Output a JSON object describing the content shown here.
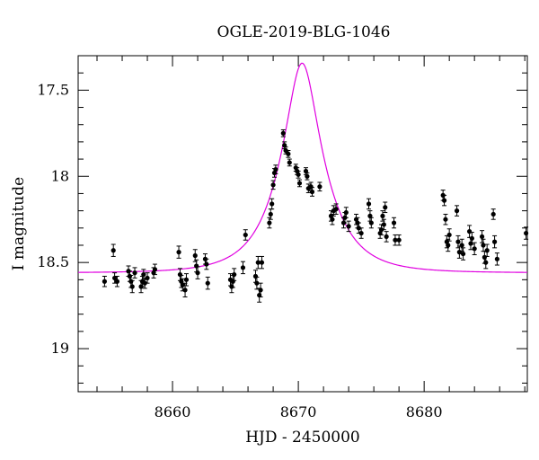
{
  "chart_data": {
    "type": "scatter",
    "title": "OGLE-2019-BLG-1046",
    "xlabel": "HJD - 2450000",
    "ylabel": "I magnitude",
    "xlim": [
      8652.5,
      8688.2
    ],
    "ylim": [
      17.3,
      19.25
    ],
    "y_inverted": true,
    "x_major_ticks": [
      8660,
      8670,
      8680
    ],
    "x_minor_step": 2,
    "y_major_ticks": [
      17.5,
      18,
      18.5,
      19
    ],
    "y_minor_step": 0.1,
    "series": [
      {
        "type": "scatter_errorbars",
        "color": "#000000",
        "points": [
          [
            8654.6,
            18.61,
            0.03
          ],
          [
            8655.3,
            18.43,
            0.035
          ],
          [
            8655.4,
            18.59,
            0.03
          ],
          [
            8655.6,
            18.61,
            0.03
          ],
          [
            8656.5,
            18.55,
            0.03
          ],
          [
            8656.6,
            18.58,
            0.03
          ],
          [
            8656.7,
            18.61,
            0.035
          ],
          [
            8656.8,
            18.64,
            0.035
          ],
          [
            8657.0,
            18.56,
            0.03
          ],
          [
            8657.5,
            18.64,
            0.035
          ],
          [
            8657.6,
            18.61,
            0.03
          ],
          [
            8657.7,
            18.57,
            0.03
          ],
          [
            8657.8,
            18.62,
            0.03
          ],
          [
            8658.0,
            18.59,
            0.03
          ],
          [
            8658.5,
            18.56,
            0.03
          ],
          [
            8658.6,
            18.54,
            0.03
          ],
          [
            8660.5,
            18.44,
            0.035
          ],
          [
            8660.6,
            18.57,
            0.035
          ],
          [
            8660.7,
            18.61,
            0.035
          ],
          [
            8660.8,
            18.63,
            0.035
          ],
          [
            8661.0,
            18.66,
            0.04
          ],
          [
            8661.1,
            18.6,
            0.035
          ],
          [
            8661.8,
            18.46,
            0.035
          ],
          [
            8661.9,
            18.52,
            0.035
          ],
          [
            8662.0,
            18.56,
            0.035
          ],
          [
            8662.6,
            18.48,
            0.03
          ],
          [
            8662.7,
            18.51,
            0.03
          ],
          [
            8662.8,
            18.62,
            0.035
          ],
          [
            8664.6,
            18.6,
            0.035
          ],
          [
            8664.7,
            18.64,
            0.035
          ],
          [
            8664.8,
            18.61,
            0.035
          ],
          [
            8664.9,
            18.57,
            0.035
          ],
          [
            8665.6,
            18.53,
            0.035
          ],
          [
            8665.8,
            18.34,
            0.03
          ],
          [
            8666.6,
            18.58,
            0.035
          ],
          [
            8666.7,
            18.62,
            0.035
          ],
          [
            8666.8,
            18.5,
            0.035
          ],
          [
            8666.9,
            18.69,
            0.04
          ],
          [
            8667.0,
            18.66,
            0.04
          ],
          [
            8667.1,
            18.5,
            0.035
          ],
          [
            8667.7,
            18.27,
            0.03
          ],
          [
            8667.8,
            18.22,
            0.03
          ],
          [
            8667.9,
            18.16,
            0.03
          ],
          [
            8668.0,
            18.05,
            0.025
          ],
          [
            8668.1,
            17.98,
            0.025
          ],
          [
            8668.2,
            17.96,
            0.025
          ],
          [
            8668.8,
            17.75,
            0.02
          ],
          [
            8668.9,
            17.82,
            0.02
          ],
          [
            8669.0,
            17.85,
            0.02
          ],
          [
            8669.2,
            17.87,
            0.02
          ],
          [
            8669.3,
            17.92,
            0.02
          ],
          [
            8669.8,
            17.95,
            0.02
          ],
          [
            8669.9,
            17.97,
            0.02
          ],
          [
            8670.0,
            17.99,
            0.02
          ],
          [
            8670.1,
            18.04,
            0.02
          ],
          [
            8670.6,
            17.97,
            0.02
          ],
          [
            8670.7,
            18.0,
            0.02
          ],
          [
            8670.8,
            18.07,
            0.025
          ],
          [
            8671.0,
            18.06,
            0.025
          ],
          [
            8671.1,
            18.09,
            0.025
          ],
          [
            8671.7,
            18.06,
            0.025
          ],
          [
            8672.6,
            18.23,
            0.03
          ],
          [
            8672.7,
            18.25,
            0.03
          ],
          [
            8672.8,
            18.2,
            0.03
          ],
          [
            8673.0,
            18.19,
            0.03
          ],
          [
            8673.6,
            18.27,
            0.03
          ],
          [
            8673.7,
            18.24,
            0.03
          ],
          [
            8673.8,
            18.21,
            0.03
          ],
          [
            8674.0,
            18.29,
            0.03
          ],
          [
            8674.6,
            18.25,
            0.03
          ],
          [
            8674.7,
            18.27,
            0.03
          ],
          [
            8674.8,
            18.3,
            0.03
          ],
          [
            8675.0,
            18.33,
            0.03
          ],
          [
            8675.6,
            18.16,
            0.03
          ],
          [
            8675.7,
            18.23,
            0.03
          ],
          [
            8675.8,
            18.27,
            0.03
          ],
          [
            8676.5,
            18.33,
            0.03
          ],
          [
            8676.6,
            18.31,
            0.03
          ],
          [
            8676.7,
            18.23,
            0.03
          ],
          [
            8676.8,
            18.28,
            0.03
          ],
          [
            8676.9,
            18.18,
            0.03
          ],
          [
            8677.0,
            18.35,
            0.03
          ],
          [
            8677.6,
            18.27,
            0.03
          ],
          [
            8677.7,
            18.37,
            0.03
          ],
          [
            8678.0,
            18.37,
            0.03
          ],
          [
            8681.5,
            18.11,
            0.03
          ],
          [
            8681.6,
            18.14,
            0.03
          ],
          [
            8681.7,
            18.25,
            0.03
          ],
          [
            8681.8,
            18.38,
            0.035
          ],
          [
            8681.9,
            18.4,
            0.035
          ],
          [
            8682.0,
            18.34,
            0.035
          ],
          [
            8682.6,
            18.2,
            0.03
          ],
          [
            8682.7,
            18.38,
            0.035
          ],
          [
            8682.8,
            18.44,
            0.035
          ],
          [
            8683.0,
            18.4,
            0.035
          ],
          [
            8683.1,
            18.45,
            0.035
          ],
          [
            8683.6,
            18.32,
            0.035
          ],
          [
            8683.7,
            18.39,
            0.035
          ],
          [
            8683.8,
            18.36,
            0.035
          ],
          [
            8684.0,
            18.42,
            0.035
          ],
          [
            8684.6,
            18.35,
            0.035
          ],
          [
            8684.7,
            18.4,
            0.035
          ],
          [
            8684.8,
            18.47,
            0.035
          ],
          [
            8684.9,
            18.5,
            0.035
          ],
          [
            8685.0,
            18.43,
            0.035
          ],
          [
            8685.5,
            18.22,
            0.03
          ],
          [
            8685.6,
            18.38,
            0.035
          ],
          [
            8685.8,
            18.48,
            0.035
          ],
          [
            8688.1,
            18.33,
            0.035
          ]
        ]
      },
      {
        "type": "model_curve",
        "color": "#e000e0",
        "t0": 8670.3,
        "tE": 3.4,
        "u0": 0.34,
        "baseline": 18.56
      }
    ],
    "grid": false,
    "legend": "none"
  }
}
